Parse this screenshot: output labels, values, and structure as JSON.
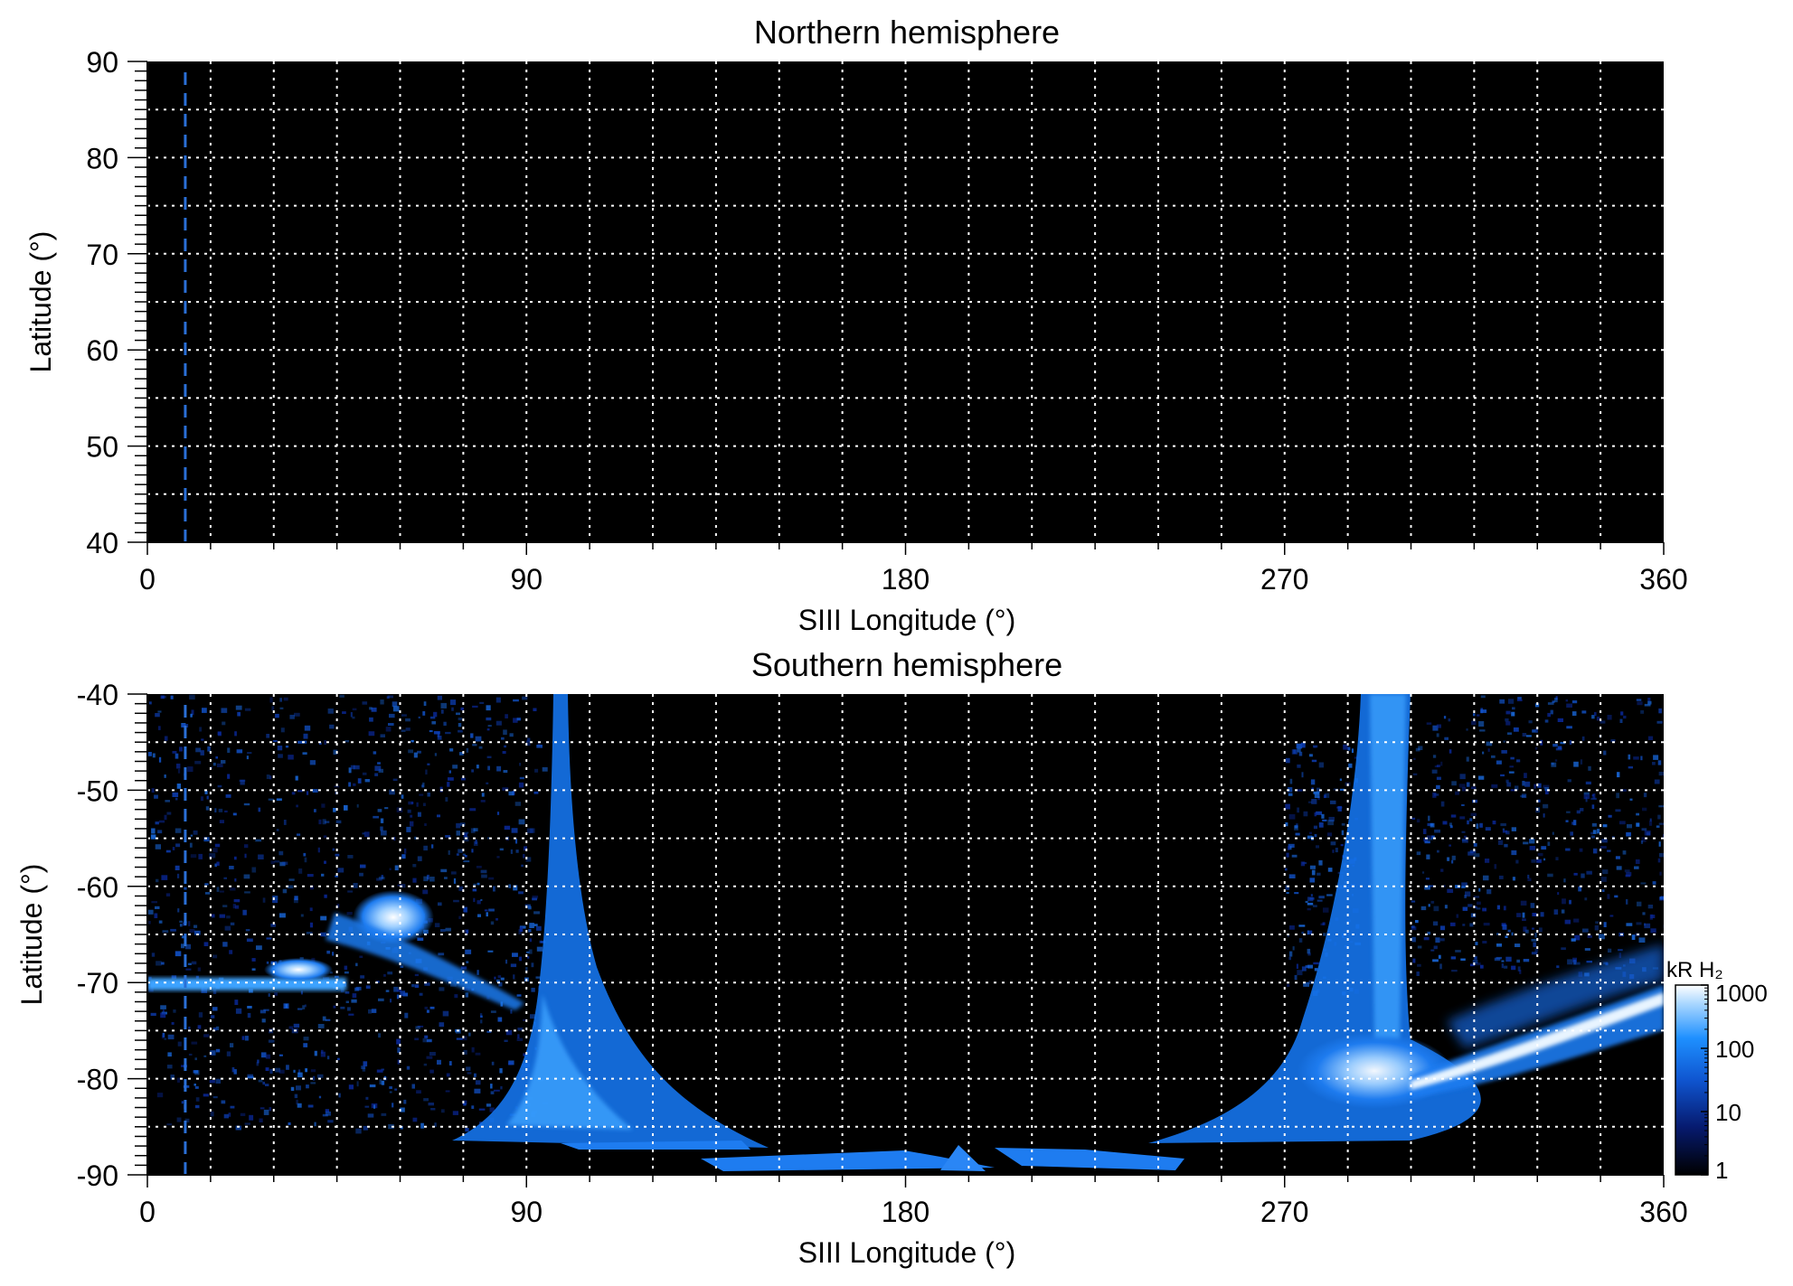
{
  "colors": {
    "background": "#000000",
    "grid": "#ffffff",
    "dashed_marker": "#2a6fd6",
    "aurora_low": "#0a2aa0",
    "aurora_mid": "#1e7cf0",
    "aurora_high": "#ffffff"
  },
  "chart_data": [
    {
      "type": "heatmap",
      "title": "Northern hemisphere",
      "xlabel": "SIII Longitude (°)",
      "ylabel": "Latitude (°)",
      "xlim": [
        0,
        360
      ],
      "ylim": [
        40,
        90
      ],
      "xticks": [
        0,
        90,
        180,
        270,
        360
      ],
      "xtick_labels": [
        "0",
        "90",
        "180",
        "270",
        "360"
      ],
      "yticks": [
        40,
        50,
        60,
        70,
        80,
        90
      ],
      "ytick_labels": [
        "40",
        "50",
        "60",
        "70",
        "80",
        "90"
      ],
      "grid": true,
      "grid_x_step": 15,
      "grid_y_step": 5,
      "dashed_marker_longitude": 9,
      "emission": "none"
    },
    {
      "type": "heatmap",
      "title": "Southern hemisphere",
      "xlabel": "SIII Longitude (°)",
      "ylabel": "Latitude (°)",
      "xlim": [
        0,
        360
      ],
      "ylim": [
        -90,
        -40
      ],
      "xticks": [
        0,
        90,
        180,
        270,
        360
      ],
      "xtick_labels": [
        "0",
        "90",
        "180",
        "270",
        "360"
      ],
      "yticks": [
        -90,
        -80,
        -70,
        -60,
        -50,
        -40
      ],
      "ytick_labels": [
        "-90",
        "-80",
        "-70",
        "-60",
        "-50",
        "-40"
      ],
      "grid": true,
      "grid_x_step": 15,
      "grid_y_step": 5,
      "dashed_marker_longitude": 9,
      "colorbar": {
        "label": "kR H₂",
        "scale": "log",
        "range": [
          1,
          1000
        ],
        "ticks": [
          1,
          10,
          100,
          1000
        ],
        "tick_labels": [
          "1",
          "10",
          "100",
          "1000"
        ]
      },
      "features": [
        {
          "lon": 10,
          "lat": -70,
          "value": 300
        },
        {
          "lon": 35,
          "lat": -68,
          "value": 800
        },
        {
          "lon": 57,
          "lat": -63,
          "value": 700
        },
        {
          "lon": 95,
          "lat": -80,
          "value": 150
        },
        {
          "lon": 300,
          "lat": -80,
          "value": 500
        },
        {
          "lon": 335,
          "lat": -75,
          "value": 800
        },
        {
          "lon": 185,
          "lat": -89,
          "value": 120
        }
      ]
    }
  ]
}
